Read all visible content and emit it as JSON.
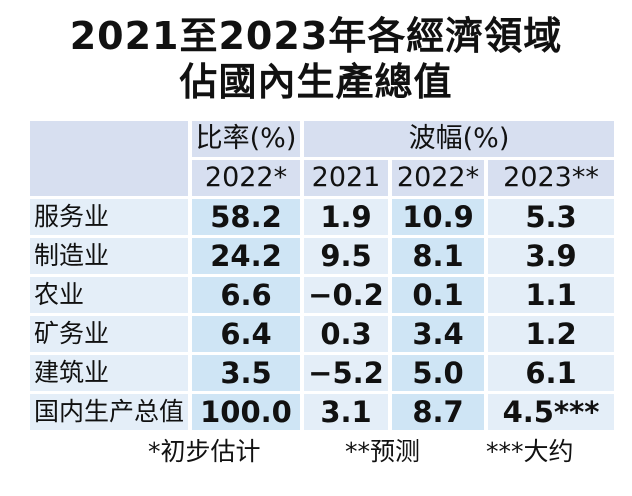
{
  "title": {
    "line1": "2021至2023年各經濟領域",
    "line2": "佔國內生產總值"
  },
  "chart_data": {
    "type": "table",
    "header": {
      "group_share": "比率(%)",
      "group_change": "波幅(%)",
      "share_year": "2022*",
      "change_years": [
        "2021",
        "2022*",
        "2023**"
      ]
    },
    "rows": [
      {
        "label": "服务业",
        "share": "58.2",
        "changes": [
          "1.9",
          "10.9",
          "5.3"
        ]
      },
      {
        "label": "制造业",
        "share": "24.2",
        "changes": [
          "9.5",
          "8.1",
          "3.9"
        ]
      },
      {
        "label": "农业",
        "share": "6.6",
        "changes": [
          "−0.2",
          "0.1",
          "1.1"
        ]
      },
      {
        "label": "矿务业",
        "share": "6.4",
        "changes": [
          "0.3",
          "3.4",
          "1.2"
        ]
      },
      {
        "label": "建筑业",
        "share": "3.5",
        "changes": [
          "−5.2",
          "5.0",
          "6.1"
        ]
      },
      {
        "label": "国内生产总值",
        "share": "100.0",
        "changes": [
          "3.1",
          "8.7",
          "4.5***"
        ]
      }
    ],
    "footnotes": [
      "*初步估计",
      "**预测",
      "***大约"
    ]
  },
  "colors": {
    "header_bg": "#d7dff0",
    "row_light": "#e4eef8",
    "row_dark": "#cfe5f5"
  }
}
